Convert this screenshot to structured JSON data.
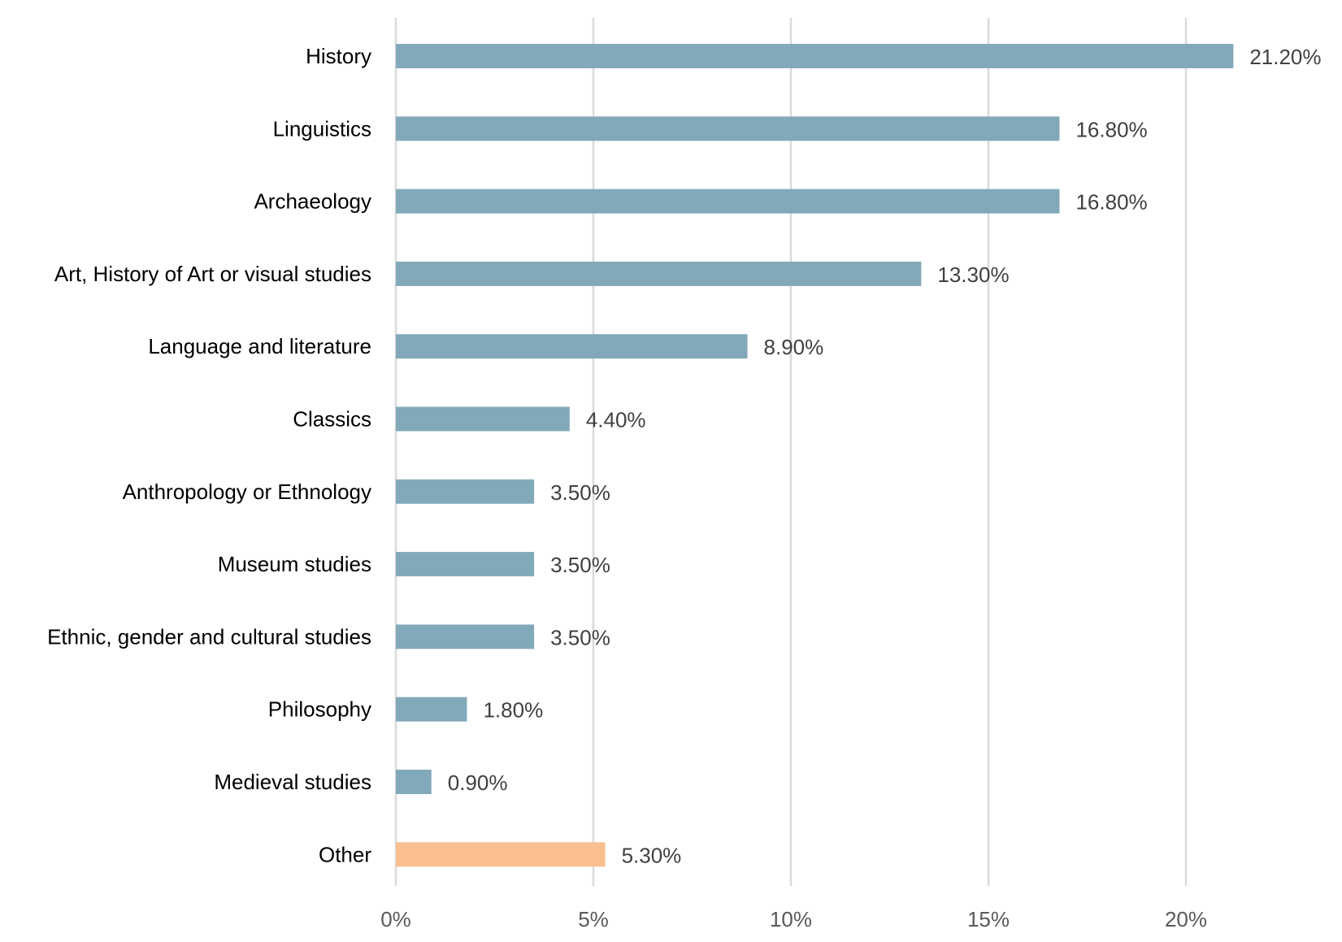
{
  "chart_data": {
    "type": "bar",
    "orientation": "horizontal",
    "categories": [
      "History",
      "Linguistics",
      "Archaeology",
      "Art, History of Art or visual studies",
      "Language and literature",
      "Classics",
      "Anthropology or Ethnology",
      "Museum studies",
      "Ethnic, gender and cultural studies",
      "Philosophy",
      "Medieval studies",
      "Other"
    ],
    "values": [
      21.2,
      16.8,
      16.8,
      13.3,
      8.9,
      4.4,
      3.5,
      3.5,
      3.5,
      1.8,
      0.9,
      5.3
    ],
    "value_labels": [
      "21.20%",
      "16.80%",
      "16.80%",
      "13.30%",
      "8.90%",
      "4.40%",
      "3.50%",
      "3.50%",
      "3.50%",
      "1.80%",
      "0.90%",
      "5.30%"
    ],
    "bar_colors": [
      "#82a9ba",
      "#82a9ba",
      "#82a9ba",
      "#82a9ba",
      "#82a9ba",
      "#82a9ba",
      "#82a9ba",
      "#82a9ba",
      "#82a9ba",
      "#82a9ba",
      "#82a9ba",
      "#f9bf8f"
    ],
    "title": "",
    "xlabel": "",
    "ylabel": "",
    "xlim": [
      0,
      22.5
    ],
    "xticks": [
      0,
      5,
      10,
      15,
      20
    ],
    "xtick_labels": [
      "0%",
      "5%",
      "10%",
      "15%",
      "20%"
    ],
    "grid": "vertical",
    "legend": "none"
  }
}
